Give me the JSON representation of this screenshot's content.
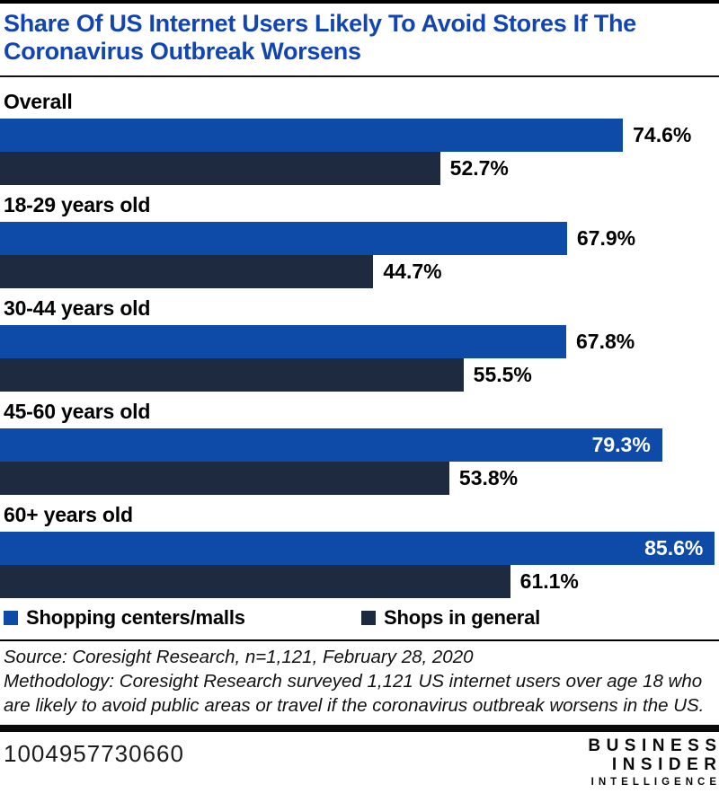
{
  "header": {
    "title": "Share Of US Internet Users Likely To Avoid Stores If The Coronavirus Outbreak Worsens"
  },
  "chart_data": {
    "type": "bar",
    "orientation": "horizontal",
    "title": "Share Of US Internet Users Likely To Avoid Stores If The Coronavirus Outbreak Worsens",
    "categories": [
      "Overall",
      "18-29 years old",
      "30-44 years old",
      "45-60 years old",
      "60+ years old"
    ],
    "series": [
      {
        "name": "Shopping centers/malls",
        "color": "#0e4aa8",
        "values": [
          74.6,
          67.9,
          67.8,
          79.3,
          85.6
        ]
      },
      {
        "name": "Shops in general",
        "color": "#1d2a40",
        "values": [
          52.7,
          44.7,
          55.5,
          53.8,
          61.1
        ]
      }
    ],
    "value_suffix": "%",
    "xlim": [
      0,
      86.1
    ],
    "grid": false,
    "legend_position": "bottom",
    "value_labels": {
      "Shopping centers/malls": [
        "74.6%",
        "67.9%",
        "67.8%",
        "79.3%",
        "85.6%"
      ],
      "Shops in general": [
        "52.7%",
        "44.7%",
        "55.5%",
        "53.8%",
        "61.1%"
      ]
    }
  },
  "colors": {
    "title_blue": "#1245b4",
    "bar_blue": "#0e4aa8",
    "bar_navy": "#1d2a40",
    "rule_black": "#000000"
  },
  "footer": {
    "source_line": "Source: Coresight Research, n=1,121, February 28, 2020",
    "methodology_line": "Methodology: Coresight Research surveyed 1,121 US internet users over age 18 who are likely to avoid public areas or travel if the coronavirus outbreak worsens in the US.",
    "chart_id": "1004957730660",
    "brand": {
      "line1": "BUSINESS",
      "line2": "INSIDER",
      "line3": "INTELLIGENCE"
    }
  }
}
